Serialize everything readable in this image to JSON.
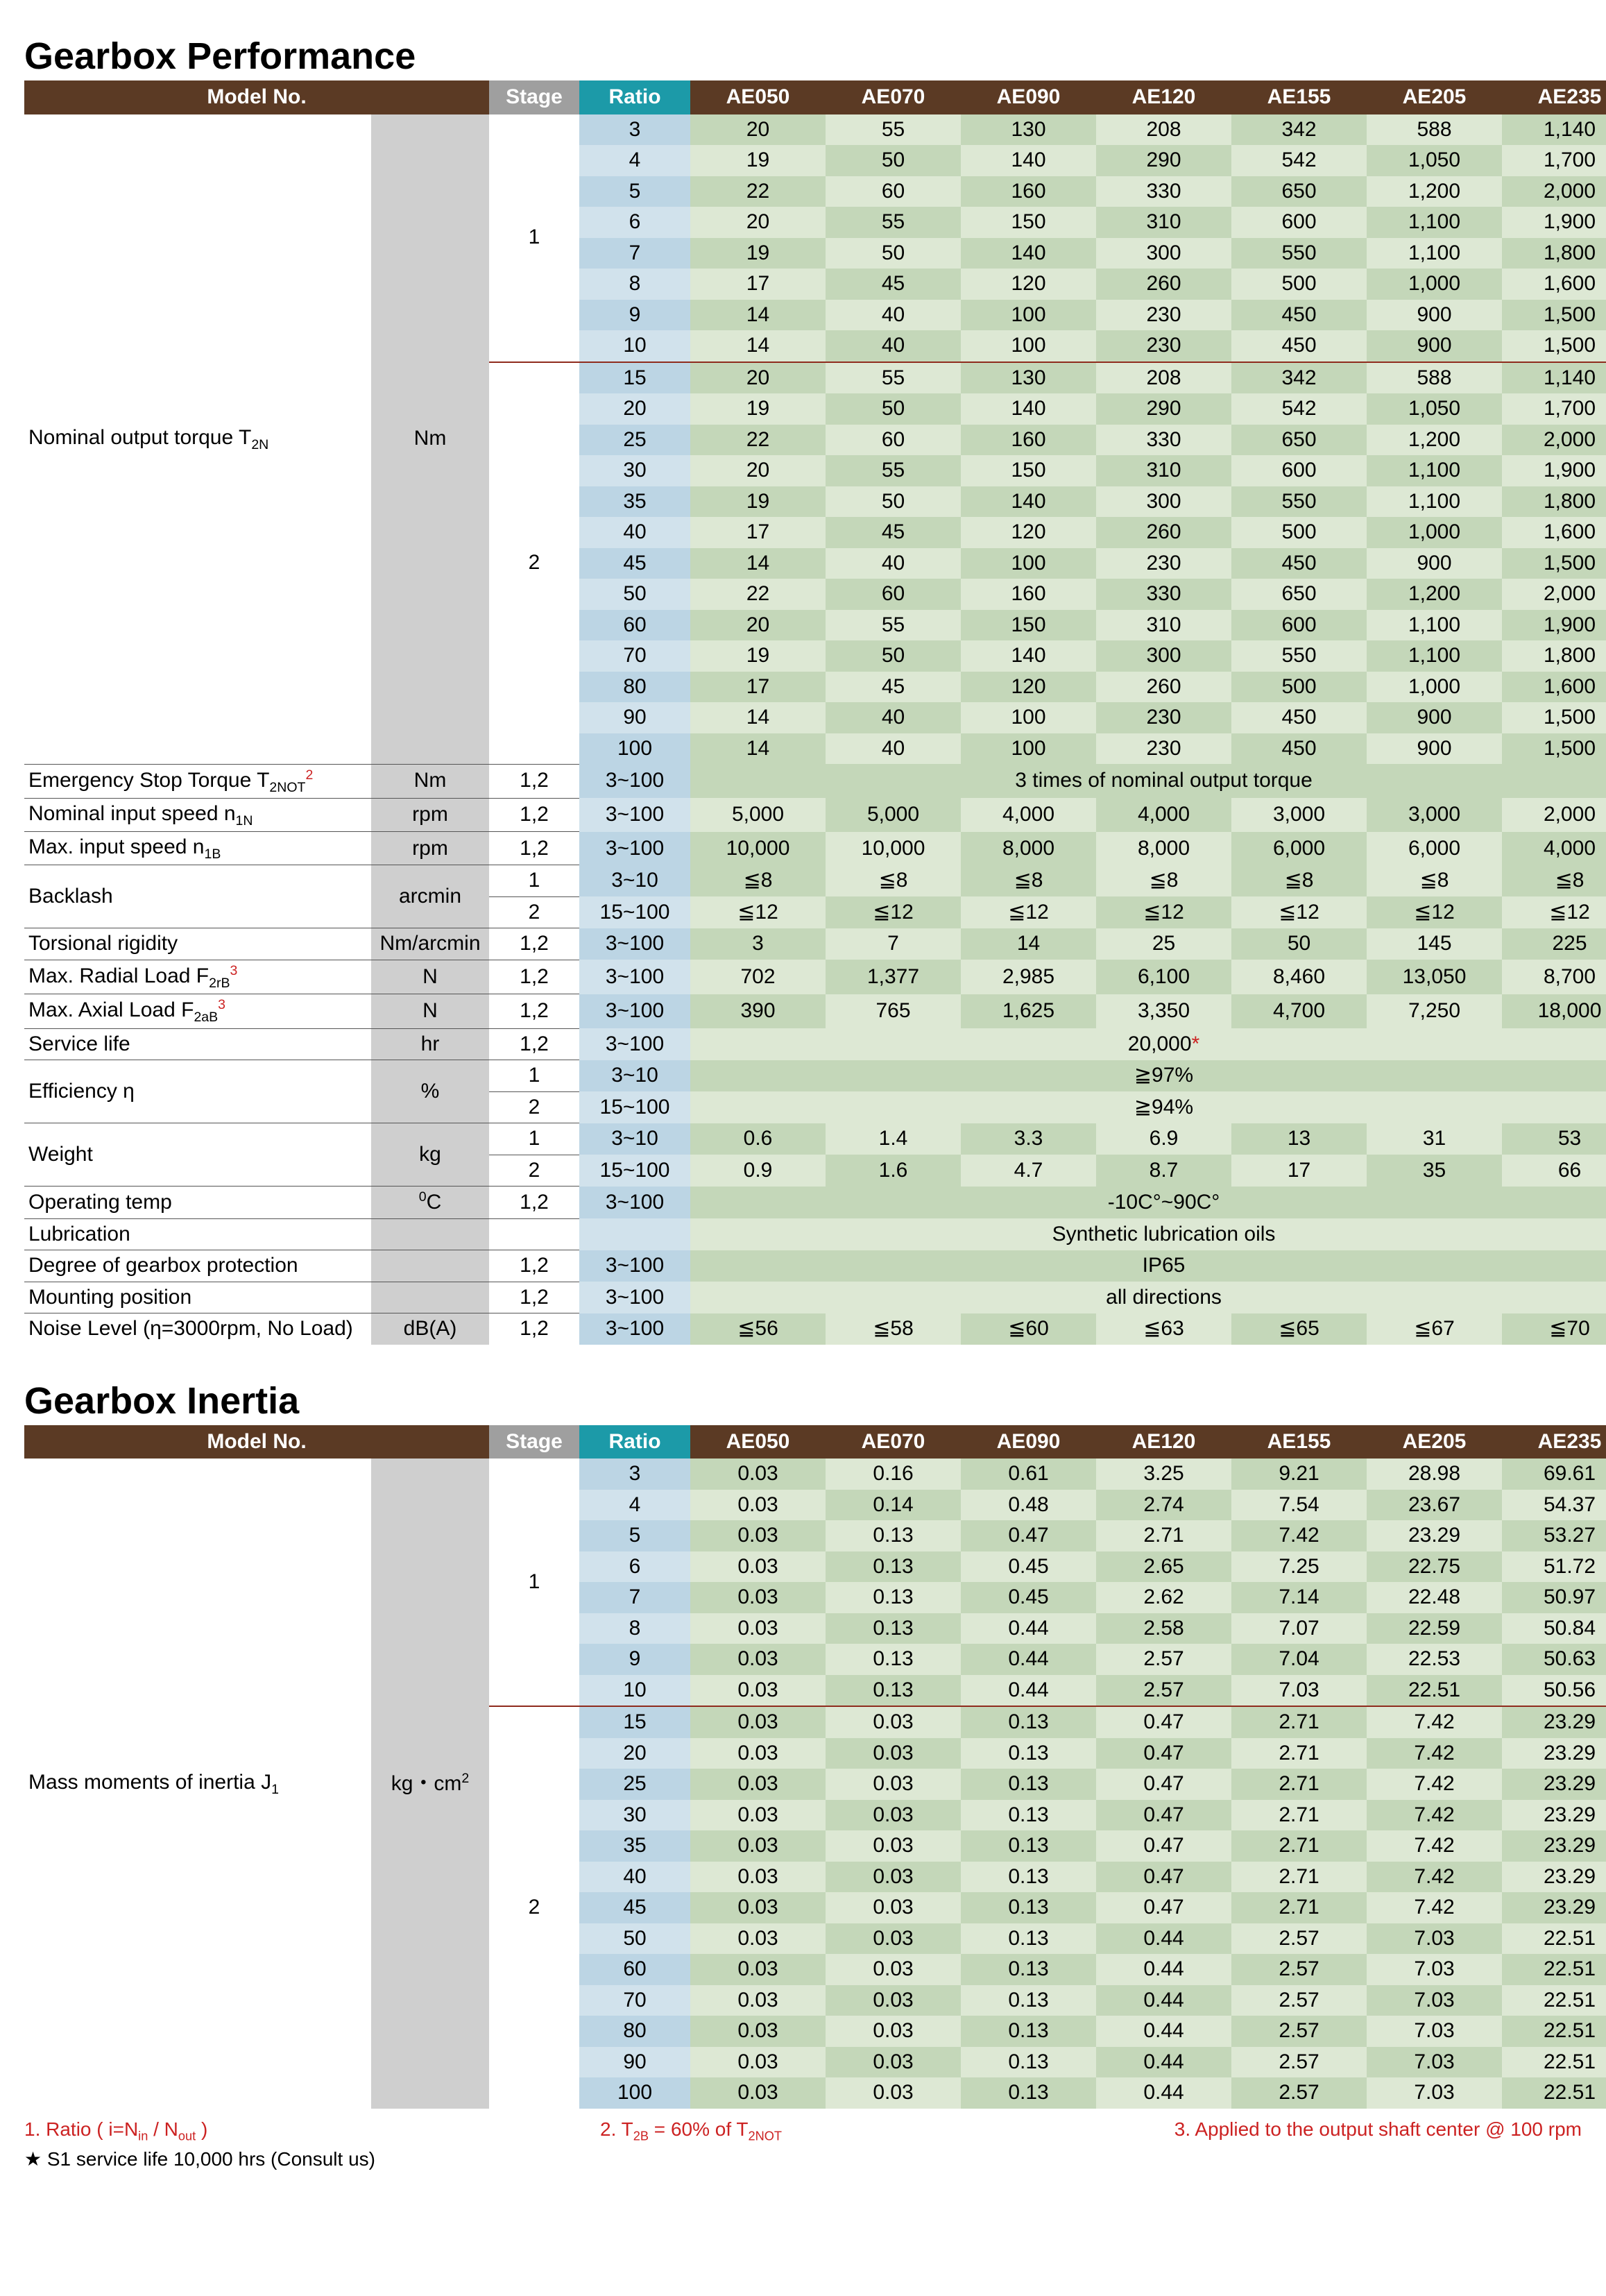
{
  "colors": {
    "header_brown": "#5b3a24",
    "header_grey": "#9f9f9f",
    "header_teal": "#1c9aa8",
    "ratio_a": "#bcd5e4",
    "ratio_b": "#d1e2ec",
    "val_a": "#c4d7b9",
    "val_b": "#dde8d4",
    "unit_grey": "#cfcfcf",
    "divider_red": "#8f2b1d",
    "footnote_red": "#c22"
  },
  "columns": [
    "AE050",
    "AE070",
    "AE090",
    "AE120",
    "AE155",
    "AE205",
    "AE235"
  ],
  "header_labels": {
    "model": "Model No.",
    "stage": "Stage",
    "ratio": "Ratio"
  },
  "performance": {
    "title": "Gearbox Performance",
    "torque": {
      "label_html": "Nominal output torque T<sub>2N</sub>",
      "unit": "Nm",
      "stage1": {
        "stage": "1",
        "rows": [
          {
            "ratio": "3",
            "v": [
              "20",
              "55",
              "130",
              "208",
              "342",
              "588",
              "1,140"
            ]
          },
          {
            "ratio": "4",
            "v": [
              "19",
              "50",
              "140",
              "290",
              "542",
              "1,050",
              "1,700"
            ]
          },
          {
            "ratio": "5",
            "v": [
              "22",
              "60",
              "160",
              "330",
              "650",
              "1,200",
              "2,000"
            ]
          },
          {
            "ratio": "6",
            "v": [
              "20",
              "55",
              "150",
              "310",
              "600",
              "1,100",
              "1,900"
            ]
          },
          {
            "ratio": "7",
            "v": [
              "19",
              "50",
              "140",
              "300",
              "550",
              "1,100",
              "1,800"
            ]
          },
          {
            "ratio": "8",
            "v": [
              "17",
              "45",
              "120",
              "260",
              "500",
              "1,000",
              "1,600"
            ]
          },
          {
            "ratio": "9",
            "v": [
              "14",
              "40",
              "100",
              "230",
              "450",
              "900",
              "1,500"
            ]
          },
          {
            "ratio": "10",
            "v": [
              "14",
              "40",
              "100",
              "230",
              "450",
              "900",
              "1,500"
            ]
          }
        ]
      },
      "stage2": {
        "stage": "2",
        "rows": [
          {
            "ratio": "15",
            "v": [
              "20",
              "55",
              "130",
              "208",
              "342",
              "588",
              "1,140"
            ]
          },
          {
            "ratio": "20",
            "v": [
              "19",
              "50",
              "140",
              "290",
              "542",
              "1,050",
              "1,700"
            ]
          },
          {
            "ratio": "25",
            "v": [
              "22",
              "60",
              "160",
              "330",
              "650",
              "1,200",
              "2,000"
            ]
          },
          {
            "ratio": "30",
            "v": [
              "20",
              "55",
              "150",
              "310",
              "600",
              "1,100",
              "1,900"
            ]
          },
          {
            "ratio": "35",
            "v": [
              "19",
              "50",
              "140",
              "300",
              "550",
              "1,100",
              "1,800"
            ]
          },
          {
            "ratio": "40",
            "v": [
              "17",
              "45",
              "120",
              "260",
              "500",
              "1,000",
              "1,600"
            ]
          },
          {
            "ratio": "45",
            "v": [
              "14",
              "40",
              "100",
              "230",
              "450",
              "900",
              "1,500"
            ]
          },
          {
            "ratio": "50",
            "v": [
              "22",
              "60",
              "160",
              "330",
              "650",
              "1,200",
              "2,000"
            ]
          },
          {
            "ratio": "60",
            "v": [
              "20",
              "55",
              "150",
              "310",
              "600",
              "1,100",
              "1,900"
            ]
          },
          {
            "ratio": "70",
            "v": [
              "19",
              "50",
              "140",
              "300",
              "550",
              "1,100",
              "1,800"
            ]
          },
          {
            "ratio": "80",
            "v": [
              "17",
              "45",
              "120",
              "260",
              "500",
              "1,000",
              "1,600"
            ]
          },
          {
            "ratio": "90",
            "v": [
              "14",
              "40",
              "100",
              "230",
              "450",
              "900",
              "1,500"
            ]
          },
          {
            "ratio": "100",
            "v": [
              "14",
              "40",
              "100",
              "230",
              "450",
              "900",
              "1,500"
            ]
          }
        ]
      }
    },
    "simple_rows": [
      {
        "label_html": "Emergency Stop Torque T<sub>2NOT</sub><sup class='redsup'>2</sup>",
        "unit": "Nm",
        "stage": "1,2",
        "ratio": "3~100",
        "span": "3 times of nominal output torque"
      },
      {
        "label_html": "Nominal input speed n<sub>1N</sub>",
        "unit": "rpm",
        "stage": "1,2",
        "ratio": "3~100",
        "v": [
          "5,000",
          "5,000",
          "4,000",
          "4,000",
          "3,000",
          "3,000",
          "2,000"
        ]
      },
      {
        "label_html": "Max. input speed n<sub>1B</sub>",
        "unit": "rpm",
        "stage": "1,2",
        "ratio": "3~100",
        "v": [
          "10,000",
          "10,000",
          "8,000",
          "8,000",
          "6,000",
          "6,000",
          "4,000"
        ]
      }
    ],
    "backlash": {
      "label": "Backlash",
      "unit": "arcmin",
      "rows": [
        {
          "stage": "1",
          "ratio": "3~10",
          "v": [
            "≦8",
            "≦8",
            "≦8",
            "≦8",
            "≦8",
            "≦8",
            "≦8"
          ]
        },
        {
          "stage": "2",
          "ratio": "15~100",
          "v": [
            "≦12",
            "≦12",
            "≦12",
            "≦12",
            "≦12",
            "≦12",
            "≦12"
          ]
        }
      ]
    },
    "more_rows": [
      {
        "label_html": "Torsional rigidity",
        "unit": "Nm/arcmin",
        "stage": "1,2",
        "ratio": "3~100",
        "v": [
          "3",
          "7",
          "14",
          "25",
          "50",
          "145",
          "225"
        ]
      },
      {
        "label_html": "Max. Radial Load F<sub>2rB</sub><sup class='redsup'>3</sup>",
        "unit": "N",
        "stage": "1,2",
        "ratio": "3~100",
        "v": [
          "702",
          "1,377",
          "2,985",
          "6,100",
          "8,460",
          "13,050",
          "8,700"
        ]
      },
      {
        "label_html": "Max. Axial Load F<sub>2aB</sub><sup class='redsup'>3</sup>",
        "unit": "N",
        "stage": "1,2",
        "ratio": "3~100",
        "v": [
          "390",
          "765",
          "1,625",
          "3,350",
          "4,700",
          "7,250",
          "18,000"
        ]
      },
      {
        "label_html": "Service life",
        "unit": "hr",
        "stage": "1,2",
        "ratio": "3~100",
        "span_html": "20,000<span style='color:#c22'>*</span>"
      }
    ],
    "efficiency": {
      "label": "Efficiency η",
      "unit": "%",
      "rows": [
        {
          "stage": "1",
          "ratio": "3~10",
          "span": "≧97%"
        },
        {
          "stage": "2",
          "ratio": "15~100",
          "span": "≧94%"
        }
      ]
    },
    "weight": {
      "label": "Weight",
      "unit": "kg",
      "rows": [
        {
          "stage": "1",
          "ratio": "3~10",
          "v": [
            "0.6",
            "1.4",
            "3.3",
            "6.9",
            "13",
            "31",
            "53"
          ]
        },
        {
          "stage": "2",
          "ratio": "15~100",
          "v": [
            "0.9",
            "1.6",
            "4.7",
            "8.7",
            "17",
            "35",
            "66"
          ]
        }
      ]
    },
    "tail_rows": [
      {
        "label_html": "Operating temp",
        "unit_html": "<sup>0</sup>C",
        "stage": "1,2",
        "ratio": "3~100",
        "span_html": "-10C&deg;~90C&deg;"
      },
      {
        "label_html": "Lubrication",
        "unit": "",
        "stage": "",
        "ratio": "",
        "span": "Synthetic lubrication oils"
      },
      {
        "label_html": "Degree of gearbox protection",
        "unit": "",
        "stage": "1,2",
        "ratio": "3~100",
        "span": "IP65"
      },
      {
        "label_html": "Mounting position",
        "unit": "",
        "stage": "1,2",
        "ratio": "3~100",
        "span": "all directions"
      },
      {
        "label_html": "Noise Level (η=3000rpm, No Load)",
        "unit": "dB(A)",
        "stage": "1,2",
        "ratio": "3~100",
        "v": [
          "≦56",
          "≦58",
          "≦60",
          "≦63",
          "≦65",
          "≦67",
          "≦70"
        ]
      }
    ]
  },
  "inertia": {
    "title": "Gearbox Inertia",
    "label_html": "Mass moments of inertia J<sub>1</sub>",
    "unit_html": "kg・cm<sup>2</sup>",
    "stage1": {
      "stage": "1",
      "rows": [
        {
          "ratio": "3",
          "v": [
            "0.03",
            "0.16",
            "0.61",
            "3.25",
            "9.21",
            "28.98",
            "69.61"
          ]
        },
        {
          "ratio": "4",
          "v": [
            "0.03",
            "0.14",
            "0.48",
            "2.74",
            "7.54",
            "23.67",
            "54.37"
          ]
        },
        {
          "ratio": "5",
          "v": [
            "0.03",
            "0.13",
            "0.47",
            "2.71",
            "7.42",
            "23.29",
            "53.27"
          ]
        },
        {
          "ratio": "6",
          "v": [
            "0.03",
            "0.13",
            "0.45",
            "2.65",
            "7.25",
            "22.75",
            "51.72"
          ]
        },
        {
          "ratio": "7",
          "v": [
            "0.03",
            "0.13",
            "0.45",
            "2.62",
            "7.14",
            "22.48",
            "50.97"
          ]
        },
        {
          "ratio": "8",
          "v": [
            "0.03",
            "0.13",
            "0.44",
            "2.58",
            "7.07",
            "22.59",
            "50.84"
          ]
        },
        {
          "ratio": "9",
          "v": [
            "0.03",
            "0.13",
            "0.44",
            "2.57",
            "7.04",
            "22.53",
            "50.63"
          ]
        },
        {
          "ratio": "10",
          "v": [
            "0.03",
            "0.13",
            "0.44",
            "2.57",
            "7.03",
            "22.51",
            "50.56"
          ]
        }
      ]
    },
    "stage2": {
      "stage": "2",
      "rows": [
        {
          "ratio": "15",
          "v": [
            "0.03",
            "0.03",
            "0.13",
            "0.47",
            "2.71",
            "7.42",
            "23.29"
          ]
        },
        {
          "ratio": "20",
          "v": [
            "0.03",
            "0.03",
            "0.13",
            "0.47",
            "2.71",
            "7.42",
            "23.29"
          ]
        },
        {
          "ratio": "25",
          "v": [
            "0.03",
            "0.03",
            "0.13",
            "0.47",
            "2.71",
            "7.42",
            "23.29"
          ]
        },
        {
          "ratio": "30",
          "v": [
            "0.03",
            "0.03",
            "0.13",
            "0.47",
            "2.71",
            "7.42",
            "23.29"
          ]
        },
        {
          "ratio": "35",
          "v": [
            "0.03",
            "0.03",
            "0.13",
            "0.47",
            "2.71",
            "7.42",
            "23.29"
          ]
        },
        {
          "ratio": "40",
          "v": [
            "0.03",
            "0.03",
            "0.13",
            "0.47",
            "2.71",
            "7.42",
            "23.29"
          ]
        },
        {
          "ratio": "45",
          "v": [
            "0.03",
            "0.03",
            "0.13",
            "0.47",
            "2.71",
            "7.42",
            "23.29"
          ]
        },
        {
          "ratio": "50",
          "v": [
            "0.03",
            "0.03",
            "0.13",
            "0.44",
            "2.57",
            "7.03",
            "22.51"
          ]
        },
        {
          "ratio": "60",
          "v": [
            "0.03",
            "0.03",
            "0.13",
            "0.44",
            "2.57",
            "7.03",
            "22.51"
          ]
        },
        {
          "ratio": "70",
          "v": [
            "0.03",
            "0.03",
            "0.13",
            "0.44",
            "2.57",
            "7.03",
            "22.51"
          ]
        },
        {
          "ratio": "80",
          "v": [
            "0.03",
            "0.03",
            "0.13",
            "0.44",
            "2.57",
            "7.03",
            "22.51"
          ]
        },
        {
          "ratio": "90",
          "v": [
            "0.03",
            "0.03",
            "0.13",
            "0.44",
            "2.57",
            "7.03",
            "22.51"
          ]
        },
        {
          "ratio": "100",
          "v": [
            "0.03",
            "0.03",
            "0.13",
            "0.44",
            "2.57",
            "7.03",
            "22.51"
          ]
        }
      ]
    }
  },
  "footnotes": {
    "n1_html": "1. Ratio ( i=N<sub>in</sub> / N<sub>out</sub> )",
    "n2_html": "2. T<sub>2B</sub> = 60% of  T<sub>2NOT</sub>",
    "n3": "3. Applied to the output shaft center @ 100 rpm",
    "star": "★ S1 service life 10,000 hrs (Consult us)"
  }
}
